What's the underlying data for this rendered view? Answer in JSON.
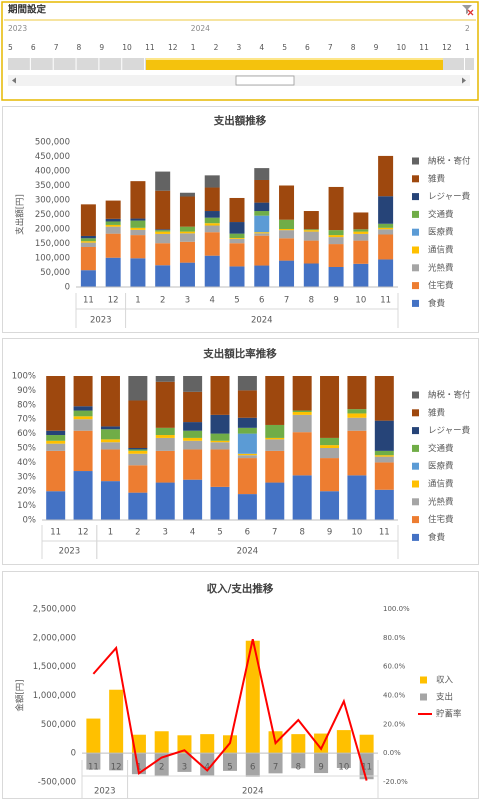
{
  "slicer": {
    "title": "期間設定",
    "groups": [
      {
        "label": "2023",
        "months": [
          "5",
          "6",
          "7",
          "8",
          "9",
          "10",
          "11",
          "12"
        ]
      },
      {
        "label": "2024",
        "months": [
          "1",
          "2",
          "3",
          "4",
          "5",
          "6",
          "7",
          "8",
          "9",
          "10",
          "11",
          "12"
        ]
      },
      {
        "label": "2",
        "months": [
          "1"
        ]
      }
    ]
  },
  "chart_data": [
    {
      "type": "bar",
      "stacked": true,
      "title": "支出額推移",
      "y_label": "支出額[円]",
      "groups": [
        {
          "label": "2023",
          "categories": [
            "11",
            "12"
          ]
        },
        {
          "label": "2024",
          "categories": [
            "1",
            "2",
            "3",
            "4",
            "5",
            "6",
            "7",
            "8",
            "9",
            "10",
            "11"
          ]
        }
      ],
      "ylim": [
        0,
        500000
      ],
      "yticks": [
        0,
        {
          "value": 50000,
          "label": "50,000"
        },
        {
          "value": 100000,
          "label": "100,000"
        },
        {
          "value": 150000,
          "label": "150,000"
        },
        {
          "value": 200000,
          "label": "200,000"
        },
        {
          "value": 250000,
          "label": "250,000"
        },
        {
          "value": 300000,
          "label": "300,000"
        },
        {
          "value": 350000,
          "label": "350,000"
        },
        {
          "value": 400000,
          "label": "400,000"
        },
        {
          "value": 450000,
          "label": "450,000"
        },
        {
          "value": 500000,
          "label": "500,000"
        }
      ],
      "grid": false,
      "legend": "right",
      "series": [
        {
          "name": "食費",
          "color": "#4472c4",
          "values": [
            58000,
            101000,
            99000,
            75000,
            84000,
            108000,
            71000,
            74000,
            91000,
            81000,
            69000,
            80000,
            95000
          ]
        },
        {
          "name": "住宅費",
          "color": "#ed7d31",
          "values": [
            80000,
            83000,
            80000,
            76000,
            72000,
            81000,
            80000,
            103000,
            77000,
            79000,
            79000,
            80000,
            86000
          ]
        },
        {
          "name": "光熱費",
          "color": "#a5a5a5",
          "values": [
            15000,
            24000,
            18000,
            32000,
            29000,
            23000,
            15000,
            8000,
            28000,
            31000,
            24000,
            23000,
            18000
          ]
        },
        {
          "name": "通信費",
          "color": "#ffc000",
          "values": [
            5000,
            6000,
            7000,
            8000,
            6000,
            8000,
            3000,
            4000,
            4000,
            5000,
            7000,
            8000,
            5000
          ]
        },
        {
          "name": "医療費",
          "color": "#5b9bd5",
          "values": [
            0,
            0,
            0,
            0,
            0,
            0,
            0,
            57000,
            0,
            0,
            0,
            0,
            0
          ]
        },
        {
          "name": "交通費",
          "color": "#70ad47",
          "values": [
            10000,
            12000,
            25000,
            5000,
            17000,
            19000,
            15000,
            16000,
            32000,
            3000,
            17000,
            8000,
            14000
          ]
        },
        {
          "name": "レジャー費",
          "color": "#264478",
          "values": [
            8000,
            9000,
            7000,
            3000,
            0,
            23000,
            40000,
            29000,
            0,
            0,
            0,
            0,
            95000
          ]
        },
        {
          "name": "雑費",
          "color": "#9e480e",
          "values": [
            109000,
            63000,
            129000,
            133000,
            104000,
            81000,
            83000,
            78000,
            118000,
            63000,
            149000,
            58000,
            139000
          ]
        },
        {
          "name": "納税・寄付",
          "color": "#636363",
          "values": [
            0,
            0,
            0,
            66000,
            13000,
            42000,
            0,
            41000,
            0,
            0,
            0,
            0,
            0
          ]
        }
      ]
    },
    {
      "type": "bar",
      "stacked": true,
      "title": "支出額比率推移",
      "groups": [
        {
          "label": "2023",
          "categories": [
            "11",
            "12"
          ]
        },
        {
          "label": "2024",
          "categories": [
            "1",
            "2",
            "3",
            "4",
            "5",
            "6",
            "7",
            "8",
            "9",
            "10",
            "11"
          ]
        }
      ],
      "ylim": [
        0,
        100
      ],
      "yticks": [
        {
          "value": 0,
          "label": "0%"
        },
        {
          "value": 10,
          "label": "10%"
        },
        {
          "value": 20,
          "label": "20%"
        },
        {
          "value": 30,
          "label": "30%"
        },
        {
          "value": 40,
          "label": "40%"
        },
        {
          "value": 50,
          "label": "50%"
        },
        {
          "value": 60,
          "label": "60%"
        },
        {
          "value": 70,
          "label": "70%"
        },
        {
          "value": 80,
          "label": "80%"
        },
        {
          "value": 90,
          "label": "90%"
        },
        {
          "value": 100,
          "label": "100%"
        }
      ],
      "grid": false,
      "legend": "right",
      "series": [
        {
          "name": "食費",
          "color": "#4472c4",
          "values": [
            20,
            34,
            27,
            19,
            26,
            28,
            23,
            18,
            26,
            31,
            20,
            31,
            21
          ]
        },
        {
          "name": "住宅費",
          "color": "#ed7d31",
          "values": [
            28,
            28,
            22,
            19,
            22,
            21,
            26,
            25,
            22,
            30,
            23,
            31,
            19
          ]
        },
        {
          "name": "光熱費",
          "color": "#a5a5a5",
          "values": [
            5,
            8,
            5,
            8,
            9,
            6,
            5,
            2,
            8,
            12,
            7,
            9,
            4
          ]
        },
        {
          "name": "通信費",
          "color": "#ffc000",
          "values": [
            2,
            2,
            2,
            2,
            2,
            2,
            1,
            1,
            1,
            2,
            2,
            3,
            1
          ]
        },
        {
          "name": "医療費",
          "color": "#5b9bd5",
          "values": [
            0,
            0,
            0,
            0,
            0,
            0,
            0,
            14,
            0,
            0,
            0,
            0,
            0
          ]
        },
        {
          "name": "交通費",
          "color": "#70ad47",
          "values": [
            4,
            4,
            7,
            1,
            5,
            5,
            5,
            4,
            9,
            1,
            5,
            3,
            3
          ]
        },
        {
          "name": "レジャー費",
          "color": "#264478",
          "values": [
            3,
            3,
            2,
            1,
            0,
            6,
            13,
            7,
            0,
            0,
            0,
            0,
            21
          ]
        },
        {
          "name": "雑費",
          "color": "#9e480e",
          "values": [
            38,
            21,
            35,
            33,
            32,
            21,
            27,
            19,
            34,
            24,
            43,
            23,
            31
          ]
        },
        {
          "name": "納税・寄付",
          "color": "#636363",
          "values": [
            0,
            0,
            0,
            17,
            4,
            11,
            0,
            10,
            0,
            0,
            0,
            0,
            0
          ]
        }
      ]
    },
    {
      "type": "bar",
      "stacked": false,
      "title": "収入/支出推移",
      "y_label": "金額[円]",
      "groups": [
        {
          "label": "2023",
          "categories": [
            "11",
            "12"
          ]
        },
        {
          "label": "2024",
          "categories": [
            "1",
            "2",
            "3",
            "4",
            "5",
            "6",
            "7",
            "8",
            "9",
            "10",
            "11"
          ]
        }
      ],
      "ylim": [
        -500000,
        2500000
      ],
      "yticks": [
        {
          "value": -500000,
          "label": "-500,000"
        },
        0,
        {
          "value": 500000,
          "label": "500,000"
        },
        {
          "value": 1000000,
          "label": "1,000,000"
        },
        {
          "value": 1500000,
          "label": "1,500,000"
        },
        {
          "value": 2000000,
          "label": "2,000,000"
        },
        {
          "value": 2500000,
          "label": "2,500,000"
        }
      ],
      "y2lim": [
        -20,
        100
      ],
      "y2ticks": [
        {
          "value": -20,
          "label": "-20.0%"
        },
        {
          "value": 0,
          "label": "0.0%"
        },
        {
          "value": 20,
          "label": "20.0%"
        },
        {
          "value": 40,
          "label": "40.0%"
        },
        {
          "value": 60,
          "label": "60.0%"
        },
        {
          "value": 80,
          "label": "80.0%"
        },
        {
          "value": 100,
          "label": "100.0%"
        }
      ],
      "grid": false,
      "legend": "right",
      "series": [
        {
          "name": "収入",
          "color": "#ffc000",
          "values": [
            600000,
            1100000,
            320000,
            380000,
            310000,
            330000,
            310000,
            1950000,
            380000,
            330000,
            340000,
            400000,
            320000
          ]
        },
        {
          "name": "支出",
          "color": "#a5a5a5",
          "values": [
            -285000,
            -298000,
            -365000,
            -398000,
            -325000,
            -385000,
            -307000,
            -410000,
            -350000,
            -262000,
            -345000,
            -257000,
            -452000
          ]
        },
        {
          "name": "貯蓄率",
          "color": "#ff0000",
          "type": "line",
          "axis": "y2",
          "values": [
            55,
            73,
            -14,
            -3,
            2,
            -12,
            7,
            79,
            7,
            23,
            3,
            36,
            -19
          ]
        }
      ]
    }
  ]
}
